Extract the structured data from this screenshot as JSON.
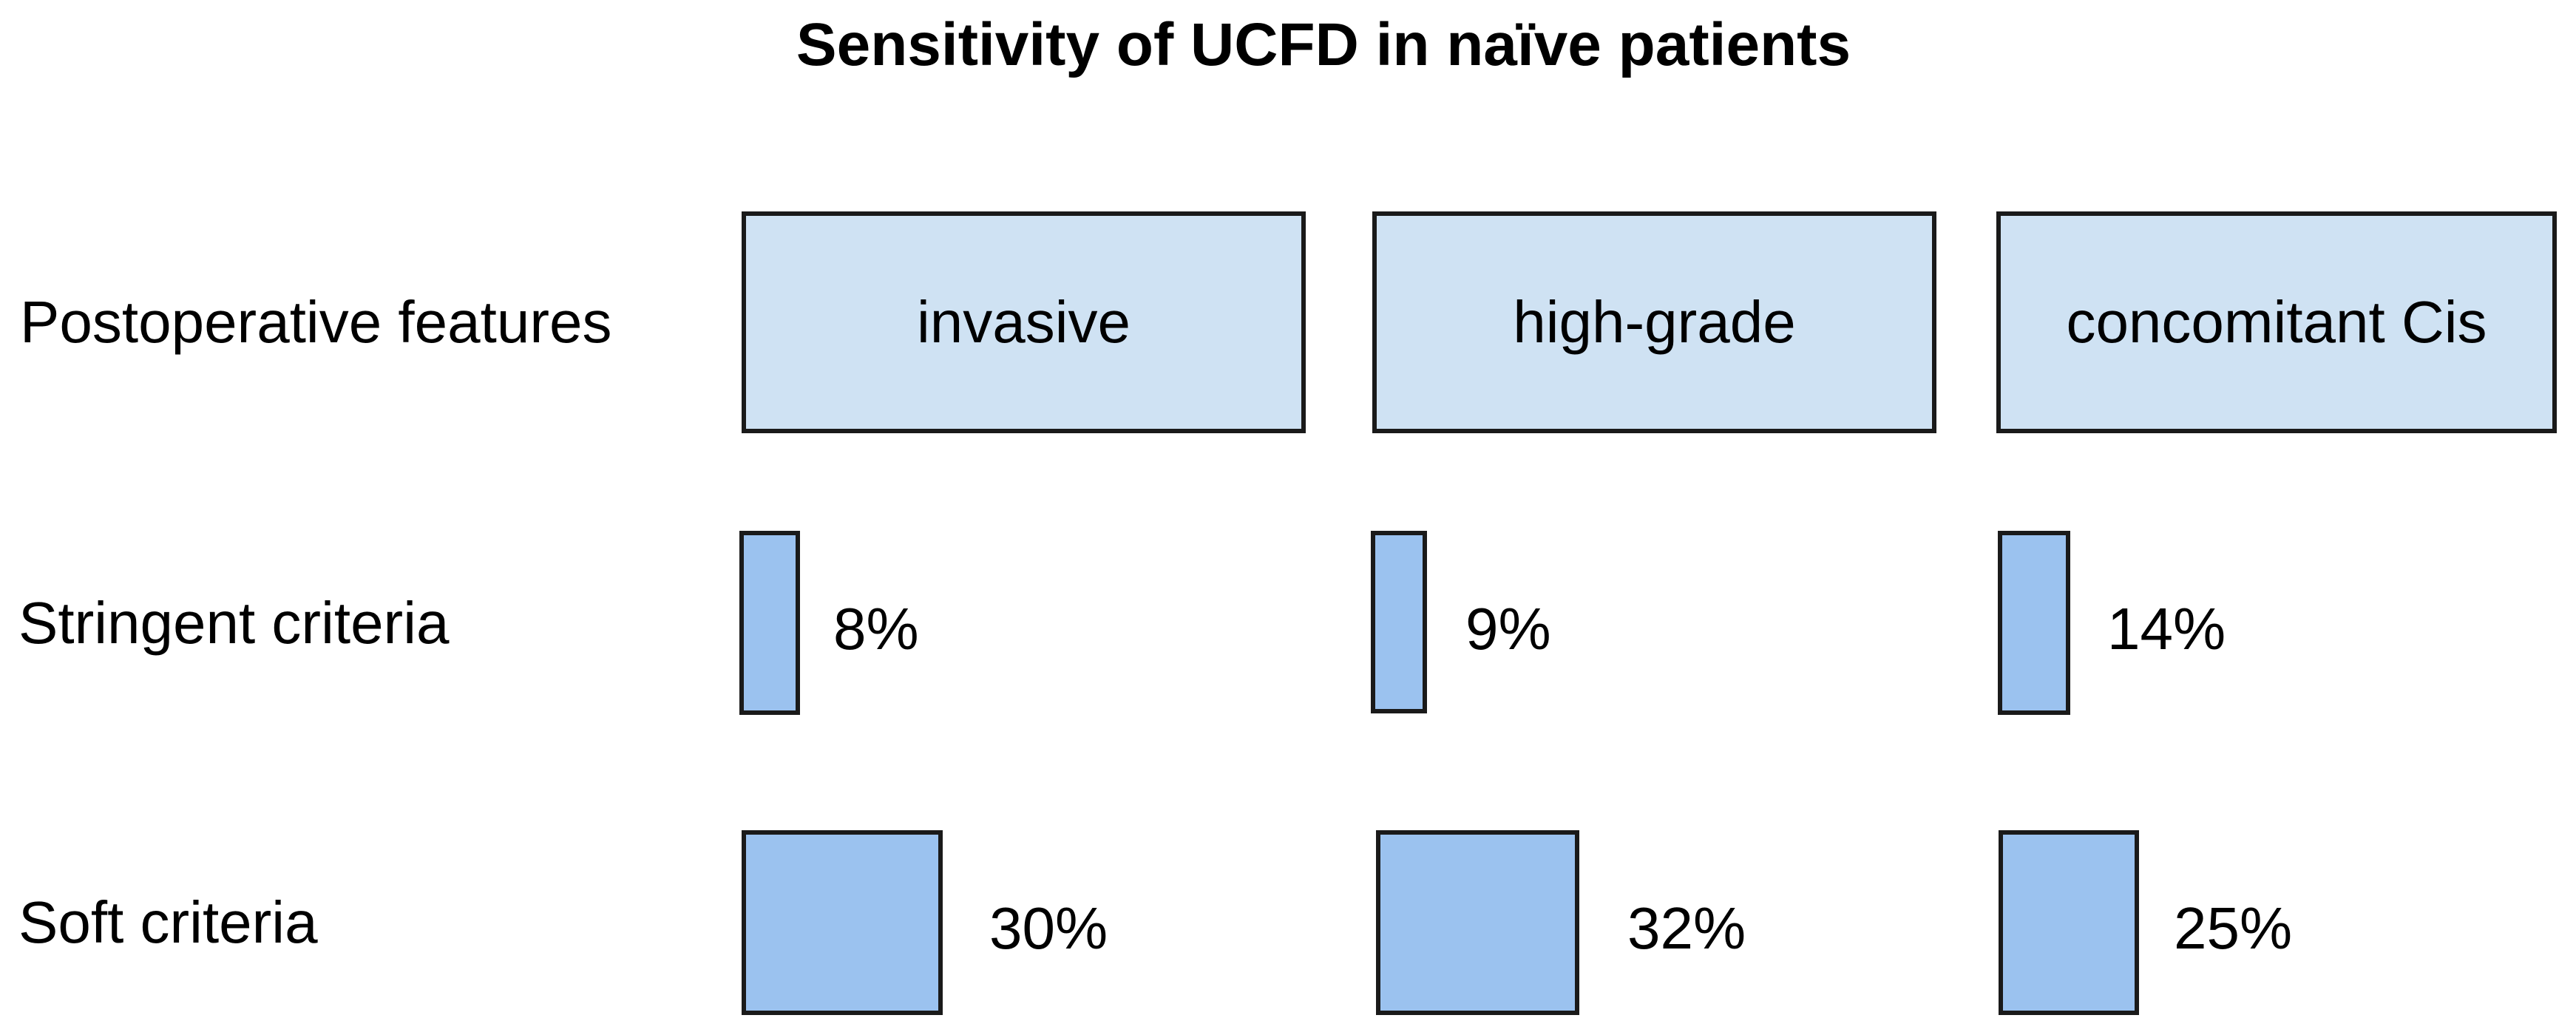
{
  "title": "Sensitivity of UCFD in naïve patients",
  "row_labels": {
    "features": "Postoperative features",
    "stringent": "Stringent criteria",
    "soft": "Soft criteria"
  },
  "colors": {
    "background": "#ffffff",
    "text": "#000000",
    "border": "#1a1a1a",
    "header_fill": "#cfe2f3",
    "bar_fill": "#9bc2ef"
  },
  "chart_data": {
    "type": "bar",
    "subtype": "pictogram-matrix",
    "title": "Sensitivity of UCFD in naïve patients",
    "categories": [
      "invasive",
      "high-grade",
      "concomitant Cis"
    ],
    "series": [
      {
        "name": "Stringent criteria",
        "values": [
          8,
          9,
          14
        ],
        "labels": [
          "8%",
          "9%",
          "14%"
        ]
      },
      {
        "name": "Soft criteria",
        "values": [
          30,
          32,
          25
        ],
        "labels": [
          "30%",
          "32%",
          "25%"
        ]
      }
    ],
    "value_unit": "%",
    "layout": "3-column grid; light-blue header boxes per category; blue rectangles sized to value with percentage label to the right of each; row labels on the left; no axes, no gridlines, no legend"
  }
}
